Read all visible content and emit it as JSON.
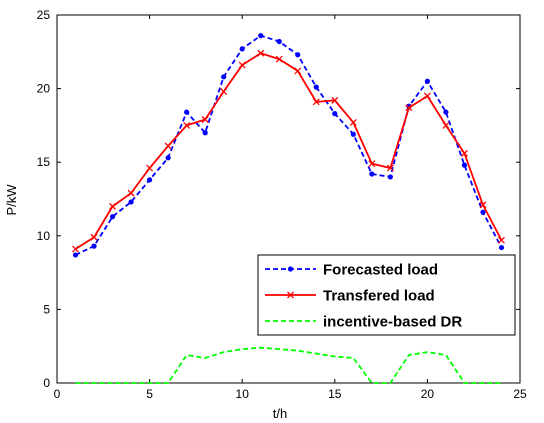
{
  "chart_data": {
    "type": "line",
    "xlabel": "t/h",
    "ylabel": "P/kW",
    "xlim": [
      0,
      25
    ],
    "ylim": [
      0,
      25
    ],
    "xticks": [
      0,
      5,
      10,
      15,
      20,
      25
    ],
    "yticks": [
      0,
      5,
      10,
      15,
      20,
      25
    ],
    "grid": false,
    "legend_position": "bottom-right",
    "x": [
      1,
      2,
      3,
      4,
      5,
      6,
      7,
      8,
      9,
      10,
      11,
      12,
      13,
      14,
      15,
      16,
      17,
      18,
      19,
      20,
      21,
      22,
      23,
      24
    ],
    "series": [
      {
        "name": "Forecasted load",
        "color": "#0000ff",
        "line_style": "dashed",
        "marker": "dot",
        "values": [
          8.7,
          9.3,
          11.3,
          12.3,
          13.8,
          15.3,
          18.4,
          17.0,
          20.8,
          22.7,
          23.6,
          23.2,
          22.3,
          20.1,
          18.3,
          16.9,
          14.2,
          14.0,
          18.8,
          20.5,
          18.4,
          14.8,
          11.6,
          9.2
        ]
      },
      {
        "name": "Transfered load",
        "color": "#ff0000",
        "line_style": "solid",
        "marker": "x",
        "values": [
          9.1,
          9.9,
          12.0,
          12.9,
          14.6,
          16.1,
          17.5,
          17.9,
          19.8,
          21.6,
          22.4,
          22.0,
          21.2,
          19.1,
          19.2,
          17.7,
          14.9,
          14.6,
          18.7,
          19.5,
          17.5,
          15.6,
          12.1,
          9.7
        ]
      },
      {
        "name": "incentive-based DR",
        "color": "#00ff00",
        "line_style": "dashed",
        "marker": "none",
        "values": [
          0,
          0,
          0,
          0,
          0,
          0,
          1.9,
          1.7,
          2.1,
          2.3,
          2.4,
          2.3,
          2.2,
          2.0,
          1.8,
          1.7,
          0,
          0,
          1.9,
          2.1,
          1.9,
          0,
          0,
          0
        ]
      }
    ]
  }
}
